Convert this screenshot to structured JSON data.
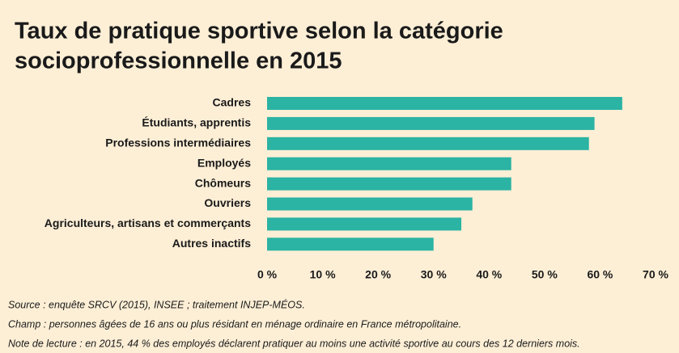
{
  "chart_data": {
    "type": "bar",
    "orientation": "horizontal",
    "title": [
      "Taux de pratique sportive selon la catégorie",
      "socioprofessionnelle en 2015"
    ],
    "categories": [
      "Cadres",
      "Étudiants, apprentis",
      "Professions intermédiaires",
      "Employés",
      "Chômeurs",
      "Ouvriers",
      "Agriculteurs, artisans et commerçants",
      "Autres inactifs"
    ],
    "values": [
      64,
      59,
      58,
      44,
      44,
      37,
      35,
      30
    ],
    "color": "#2bb3a3",
    "xlim": [
      0,
      70
    ],
    "xticks": [
      {
        "value": 0,
        "label": "0 %"
      },
      {
        "value": 10,
        "label": "10 %"
      },
      {
        "value": 20,
        "label": "20 %"
      },
      {
        "value": 30,
        "label": "30 %"
      },
      {
        "value": 40,
        "label": "40 %"
      },
      {
        "value": 50,
        "label": "50 %"
      },
      {
        "value": 60,
        "label": "60 %"
      },
      {
        "value": 70,
        "label": "70 %"
      }
    ],
    "notes": [
      "Source : enquête SRCV (2015), INSEE ; traitement INJEP-MÉOS.",
      "Champ : personnes âgées de 16 ans ou plus résidant en ménage ordinaire en France métropolitaine.",
      "Note de lecture : en 2015, 44 % des employés déclarent pratiquer au moins une activité sportive au cours des 12 derniers mois."
    ]
  }
}
